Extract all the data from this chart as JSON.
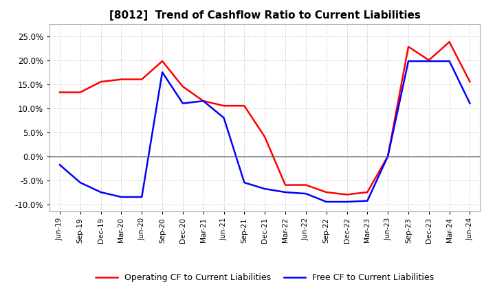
{
  "title": "[8012]  Trend of Cashflow Ratio to Current Liabilities",
  "title_fontsize": 11,
  "x_labels": [
    "Jun-19",
    "Sep-19",
    "Dec-19",
    "Mar-20",
    "Jun-20",
    "Sep-20",
    "Dec-20",
    "Mar-21",
    "Jun-21",
    "Sep-21",
    "Dec-21",
    "Mar-22",
    "Jun-22",
    "Sep-22",
    "Dec-22",
    "Mar-23",
    "Jun-23",
    "Sep-23",
    "Dec-23",
    "Mar-24",
    "Jun-24"
  ],
  "operating_cf": [
    0.133,
    0.133,
    0.155,
    0.16,
    0.16,
    0.198,
    0.145,
    0.115,
    0.105,
    0.105,
    0.04,
    -0.06,
    -0.06,
    -0.075,
    -0.08,
    -0.075,
    0.0,
    0.228,
    0.2,
    0.238,
    0.155
  ],
  "free_cf": [
    -0.018,
    -0.055,
    -0.075,
    -0.085,
    -0.085,
    0.175,
    0.11,
    0.115,
    0.08,
    -0.055,
    -0.068,
    -0.075,
    -0.078,
    -0.095,
    -0.095,
    -0.093,
    0.0,
    0.198,
    0.198,
    0.198,
    0.11
  ],
  "ylim": [
    -0.115,
    0.275
  ],
  "yticks": [
    -0.1,
    -0.05,
    0.0,
    0.05,
    0.1,
    0.15,
    0.2,
    0.25
  ],
  "operating_color": "#ff0000",
  "free_color": "#0000ff",
  "grid_color": "#bbbbbb",
  "background_color": "#ffffff",
  "zero_line_color": "#555555",
  "legend_operating": "Operating CF to Current Liabilities",
  "legend_free": "Free CF to Current Liabilities"
}
